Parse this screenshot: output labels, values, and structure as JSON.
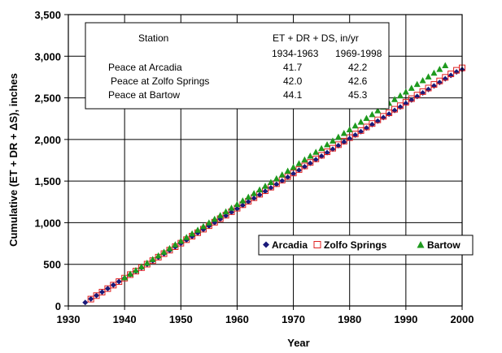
{
  "chart_data": {
    "type": "scatter",
    "xlabel": "Year",
    "ylabel": "Cumulative (ET + DR + ΔS), inches",
    "xlim": [
      1930,
      2000
    ],
    "ylim": [
      0,
      3500
    ],
    "xticks": [
      "1930",
      "1940",
      "1950",
      "1960",
      "1970",
      "1980",
      "1990",
      "2000"
    ],
    "yticks": [
      "0",
      "500",
      "1,000",
      "1,500",
      "2,000",
      "2,500",
      "3,000",
      "3,500"
    ],
    "grid": true,
    "legend_position": "lower-right",
    "series": [
      {
        "name": "Arcadia",
        "marker": "diamond",
        "color": "#1a1a7a",
        "x": [
          1933,
          1934,
          1935,
          1936,
          1937,
          1938,
          1939,
          1940,
          1941,
          1942,
          1943,
          1944,
          1945,
          1946,
          1947,
          1948,
          1949,
          1950,
          1951,
          1952,
          1953,
          1954,
          1955,
          1956,
          1957,
          1958,
          1959,
          1960,
          1961,
          1962,
          1963,
          1964,
          1965,
          1966,
          1967,
          1968,
          1969,
          1970,
          1971,
          1972,
          1973,
          1974,
          1975,
          1976,
          1977,
          1978,
          1979,
          1980,
          1981,
          1982,
          1983,
          1984,
          1985,
          1986,
          1987,
          1988,
          1989,
          1990,
          1991,
          1992,
          1993,
          1994,
          1995,
          1996,
          1997,
          1998,
          1999,
          2000
        ],
        "y": [
          42,
          84,
          125,
          167,
          209,
          251,
          292,
          334,
          376,
          417,
          459,
          501,
          542,
          584,
          626,
          667,
          709,
          751,
          792,
          834,
          876,
          918,
          959,
          1001,
          1043,
          1084,
          1126,
          1168,
          1209,
          1251,
          1293,
          1335,
          1377,
          1419,
          1461,
          1503,
          1546,
          1588,
          1630,
          1672,
          1714,
          1757,
          1799,
          1841,
          1883,
          1925,
          1968,
          2010,
          2052,
          2094,
          2137,
          2179,
          2221,
          2263,
          2305,
          2348,
          2390,
          2432,
          2474,
          2516,
          2559,
          2601,
          2643,
          2685,
          2728,
          2770,
          2812,
          2840
        ]
      },
      {
        "name": "Zolfo Springs",
        "marker": "square",
        "color": "#e02020",
        "x": [
          1934,
          1935,
          1936,
          1937,
          1938,
          1939,
          1940,
          1941,
          1942,
          1943,
          1944,
          1945,
          1946,
          1947,
          1948,
          1949,
          1950,
          1951,
          1952,
          1953,
          1954,
          1955,
          1956,
          1957,
          1958,
          1959,
          1960,
          1961,
          1962,
          1963,
          1964,
          1965,
          1966,
          1967,
          1968,
          1969,
          1970,
          1971,
          1972,
          1973,
          1974,
          1975,
          1976,
          1977,
          1978,
          1979,
          1980,
          1981,
          1982,
          1983,
          1984,
          1985,
          1986,
          1987,
          1988,
          1989,
          1990,
          1991,
          1992,
          1993,
          1994,
          1995,
          1996,
          1997,
          1998,
          1999,
          2000
        ],
        "y": [
          82,
          124,
          166,
          208,
          250,
          292,
          334,
          376,
          418,
          460,
          502,
          544,
          586,
          628,
          670,
          712,
          754,
          796,
          838,
          880,
          922,
          964,
          1006,
          1048,
          1090,
          1132,
          1174,
          1216,
          1258,
          1300,
          1342,
          1384,
          1427,
          1469,
          1512,
          1554,
          1597,
          1639,
          1682,
          1724,
          1767,
          1810,
          1852,
          1895,
          1937,
          1980,
          2022,
          2065,
          2107,
          2150,
          2192,
          2235,
          2278,
          2320,
          2363,
          2405,
          2448,
          2490,
          2533,
          2575,
          2618,
          2661,
          2703,
          2746,
          2788,
          2831,
          2860
        ]
      },
      {
        "name": "Bartow",
        "marker": "triangle",
        "color": "#1e9a1e",
        "x": [
          1940,
          1941,
          1942,
          1943,
          1944,
          1945,
          1946,
          1947,
          1948,
          1949,
          1950,
          1951,
          1952,
          1953,
          1954,
          1955,
          1956,
          1957,
          1958,
          1959,
          1960,
          1961,
          1962,
          1963,
          1964,
          1965,
          1966,
          1967,
          1968,
          1969,
          1970,
          1971,
          1972,
          1973,
          1974,
          1975,
          1976,
          1977,
          1978,
          1979,
          1980,
          1981,
          1982,
          1983,
          1984,
          1985,
          1986,
          1987,
          1988,
          1989,
          1990,
          1991,
          1992,
          1993,
          1994,
          1995,
          1996,
          1997
        ],
        "y": [
          342,
          386,
          430,
          474,
          518,
          562,
          606,
          650,
          694,
          738,
          782,
          826,
          870,
          914,
          958,
          1002,
          1046,
          1090,
          1134,
          1178,
          1222,
          1266,
          1310,
          1354,
          1398,
          1442,
          1487,
          1532,
          1578,
          1623,
          1668,
          1714,
          1759,
          1804,
          1850,
          1895,
          1940,
          1985,
          2031,
          2076,
          2121,
          2167,
          2212,
          2257,
          2302,
          2348,
          2393,
          2438,
          2484,
          2529,
          2574,
          2619,
          2665,
          2710,
          2755,
          2801,
          2846,
          2891
        ]
      }
    ],
    "table": {
      "header_station": "Station",
      "header_measure": "ET + DR + DS, in/yr",
      "period_1": "1934-1963",
      "period_2": "1969-1998",
      "rows": [
        {
          "station": "Peace at Arcadia",
          "p1": "41.7",
          "p2": "42.2"
        },
        {
          "station": "Peace at Zolfo Springs",
          "p1": "42.0",
          "p2": "42.6"
        },
        {
          "station": "Peace at Bartow",
          "p1": "44.1",
          "p2": "45.3"
        }
      ]
    }
  }
}
